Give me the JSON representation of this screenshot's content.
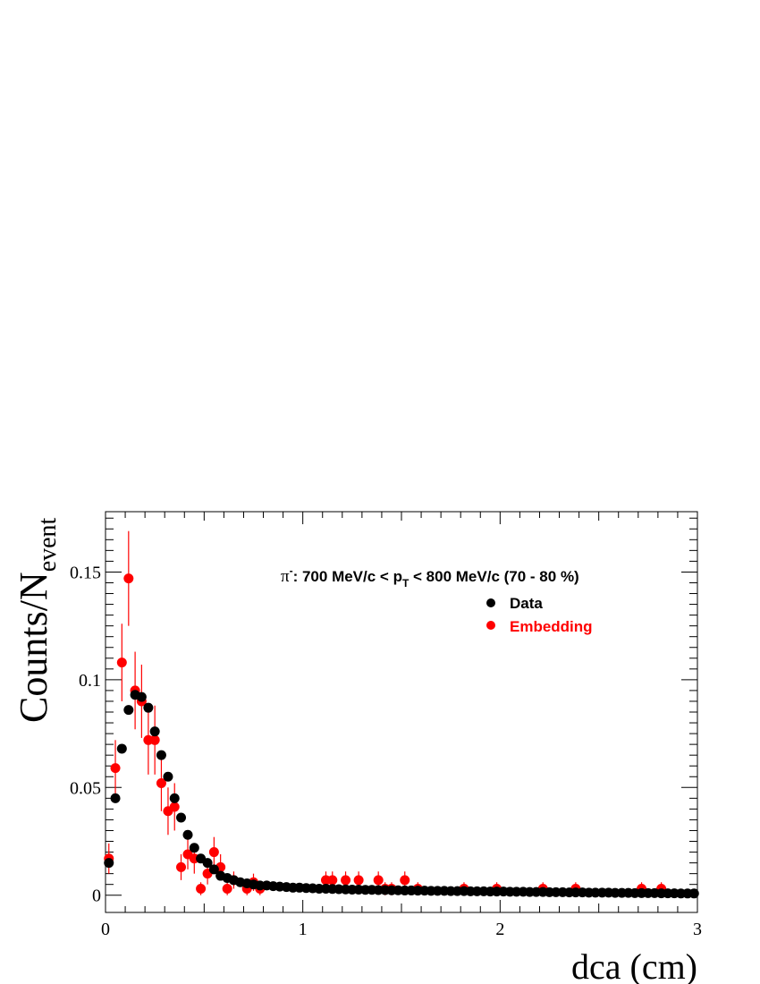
{
  "chart_data": {
    "type": "scatter",
    "title": "",
    "annotation": {
      "particle": "π",
      "charge": "-",
      "text_1": ": 700 MeV/c < p",
      "text_sub": "T",
      "text_2": " < 800 MeV/c (70 - 80 %)"
    },
    "xlabel": "dca (cm)",
    "ylabel": {
      "main": "Counts/N",
      "sub": "event"
    },
    "xlim": [
      0,
      3
    ],
    "ylim": [
      -0.008,
      0.178
    ],
    "x_ticks": [
      {
        "value": 0,
        "label": "0"
      },
      {
        "value": 1,
        "label": "1"
      },
      {
        "value": 2,
        "label": "2"
      },
      {
        "value": 3,
        "label": "3"
      }
    ],
    "y_ticks": [
      {
        "value": 0,
        "label": "0"
      },
      {
        "value": 0.05,
        "label": "0.05"
      },
      {
        "value": 0.1,
        "label": "0.1"
      },
      {
        "value": 0.15,
        "label": "0.15"
      }
    ],
    "legend_position": "top-right",
    "grid": false,
    "series": [
      {
        "name": "Data",
        "color": "#000000",
        "x": [
          0.017,
          0.05,
          0.083,
          0.117,
          0.15,
          0.183,
          0.217,
          0.25,
          0.283,
          0.317,
          0.35,
          0.383,
          0.417,
          0.45,
          0.483,
          0.517,
          0.55,
          0.583,
          0.617,
          0.65,
          0.683,
          0.717,
          0.75,
          0.783,
          0.817,
          0.85,
          0.883,
          0.917,
          0.95,
          0.983,
          1.017,
          1.05,
          1.083,
          1.117,
          1.15,
          1.183,
          1.217,
          1.25,
          1.283,
          1.317,
          1.35,
          1.383,
          1.417,
          1.45,
          1.483,
          1.517,
          1.55,
          1.583,
          1.617,
          1.65,
          1.683,
          1.717,
          1.75,
          1.783,
          1.817,
          1.85,
          1.883,
          1.917,
          1.95,
          1.983,
          2.017,
          2.05,
          2.083,
          2.117,
          2.15,
          2.183,
          2.217,
          2.25,
          2.283,
          2.317,
          2.35,
          2.383,
          2.417,
          2.45,
          2.483,
          2.517,
          2.55,
          2.583,
          2.617,
          2.65,
          2.683,
          2.717,
          2.75,
          2.783,
          2.817,
          2.85,
          2.883,
          2.917,
          2.95,
          2.983
        ],
        "y": [
          0.015,
          0.045,
          0.068,
          0.086,
          0.093,
          0.092,
          0.087,
          0.076,
          0.065,
          0.055,
          0.045,
          0.036,
          0.028,
          0.022,
          0.017,
          0.015,
          0.012,
          0.009,
          0.008,
          0.007,
          0.006,
          0.0055,
          0.005,
          0.0045,
          0.0045,
          0.0042,
          0.004,
          0.0038,
          0.0035,
          0.0035,
          0.0033,
          0.0032,
          0.003,
          0.003,
          0.0029,
          0.0028,
          0.0027,
          0.0026,
          0.0026,
          0.0025,
          0.0025,
          0.0024,
          0.0024,
          0.0023,
          0.0023,
          0.0022,
          0.0022,
          0.0021,
          0.0021,
          0.002,
          0.002,
          0.002,
          0.0019,
          0.0019,
          0.0019,
          0.0018,
          0.0018,
          0.0018,
          0.0017,
          0.0017,
          0.0017,
          0.0016,
          0.0016,
          0.0016,
          0.0015,
          0.0015,
          0.0015,
          0.0014,
          0.0014,
          0.0014,
          0.0013,
          0.0013,
          0.0013,
          0.0012,
          0.0012,
          0.0012,
          0.0012,
          0.0011,
          0.0011,
          0.0011,
          0.001,
          0.001,
          0.001,
          0.001,
          0.0009,
          0.0009,
          0.0009,
          0.0008,
          0.0008,
          0.0008
        ]
      },
      {
        "name": "Embedding",
        "color": "#ff0000",
        "x": [
          0.017,
          0.05,
          0.083,
          0.117,
          0.15,
          0.183,
          0.217,
          0.25,
          0.283,
          0.317,
          0.35,
          0.383,
          0.417,
          0.45,
          0.483,
          0.517,
          0.55,
          0.583,
          0.617,
          0.65,
          0.717,
          0.75,
          0.783,
          1.117,
          1.15,
          1.217,
          1.283,
          1.383,
          1.417,
          1.45,
          1.517,
          1.583,
          1.817,
          1.983,
          2.217,
          2.383,
          2.717,
          2.817
        ],
        "y": [
          0.017,
          0.059,
          0.108,
          0.147,
          0.095,
          0.09,
          0.072,
          0.072,
          0.052,
          0.039,
          0.041,
          0.013,
          0.019,
          0.017,
          0.003,
          0.01,
          0.02,
          0.013,
          0.003,
          0.007,
          0.003,
          0.006,
          0.003,
          0.007,
          0.007,
          0.007,
          0.007,
          0.007,
          0.003,
          0.003,
          0.007,
          0.003,
          0.003,
          0.003,
          0.003,
          0.003,
          0.003,
          0.003
        ],
        "err": [
          0.007,
          0.013,
          0.018,
          0.022,
          0.018,
          0.017,
          0.016,
          0.016,
          0.013,
          0.011,
          0.011,
          0.006,
          0.007,
          0.007,
          0.003,
          0.005,
          0.007,
          0.006,
          0.003,
          0.004,
          0.003,
          0.004,
          0.003,
          0.004,
          0.004,
          0.004,
          0.004,
          0.004,
          0.003,
          0.003,
          0.004,
          0.003,
          0.003,
          0.003,
          0.003,
          0.003,
          0.003,
          0.003
        ]
      }
    ]
  }
}
